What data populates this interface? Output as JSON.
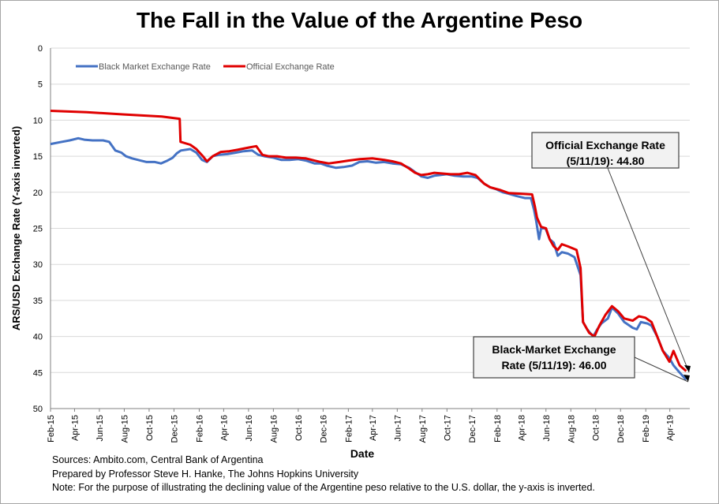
{
  "chart_data": {
    "type": "line",
    "title": "The Fall in the Value of the Argentine Peso",
    "xlabel": "Date",
    "ylabel": "ARS/USD Exchange Rate (Y-axis inverted)",
    "ylim": [
      0,
      50
    ],
    "y_inverted": true,
    "y_ticks": [
      "0",
      "5",
      "10",
      "15",
      "20",
      "25",
      "30",
      "35",
      "40",
      "45",
      "50"
    ],
    "x_ticks": [
      "Feb-15",
      "Apr-15",
      "Jun-15",
      "Aug-15",
      "Oct-15",
      "Dec-15",
      "Feb-16",
      "Apr-16",
      "Jun-16",
      "Aug-16",
      "Oct-16",
      "Dec-16",
      "Feb-17",
      "Apr-17",
      "Jun-17",
      "Aug-17",
      "Oct-17",
      "Dec-17",
      "Feb-18",
      "Apr-18",
      "Jun-18",
      "Aug-18",
      "Oct-18",
      "Dec-18",
      "Feb-19",
      "Apr-19"
    ],
    "grid": true,
    "legend_position": "top-left",
    "series": [
      {
        "name": "Black Market Exchange Rate",
        "color": "#4472c4",
        "points": [
          [
            "2015-02-01",
            13.3
          ],
          [
            "2015-03-01",
            13.0
          ],
          [
            "2015-03-20",
            12.8
          ],
          [
            "2015-04-10",
            12.5
          ],
          [
            "2015-04-25",
            12.7
          ],
          [
            "2015-05-15",
            12.8
          ],
          [
            "2015-06-10",
            12.8
          ],
          [
            "2015-06-25",
            13.0
          ],
          [
            "2015-07-10",
            14.2
          ],
          [
            "2015-07-25",
            14.5
          ],
          [
            "2015-08-05",
            15.0
          ],
          [
            "2015-08-20",
            15.3
          ],
          [
            "2015-09-10",
            15.6
          ],
          [
            "2015-09-25",
            15.8
          ],
          [
            "2015-10-15",
            15.8
          ],
          [
            "2015-10-30",
            16.0
          ],
          [
            "2015-11-15",
            15.6
          ],
          [
            "2015-11-28",
            15.2
          ],
          [
            "2015-12-08",
            14.6
          ],
          [
            "2015-12-18",
            14.2
          ],
          [
            "2016-01-10",
            14.0
          ],
          [
            "2016-01-25",
            14.5
          ],
          [
            "2016-02-08",
            15.5
          ],
          [
            "2016-02-20",
            15.8
          ],
          [
            "2016-03-05",
            15.0
          ],
          [
            "2016-03-20",
            14.8
          ],
          [
            "2016-04-10",
            14.7
          ],
          [
            "2016-05-01",
            14.5
          ],
          [
            "2016-05-20",
            14.3
          ],
          [
            "2016-06-10",
            14.2
          ],
          [
            "2016-06-25",
            14.8
          ],
          [
            "2016-07-10",
            15.0
          ],
          [
            "2016-08-01",
            15.2
          ],
          [
            "2016-08-20",
            15.5
          ],
          [
            "2016-09-10",
            15.5
          ],
          [
            "2016-10-01",
            15.4
          ],
          [
            "2016-10-20",
            15.6
          ],
          [
            "2016-11-10",
            16.0
          ],
          [
            "2016-11-25",
            16.0
          ],
          [
            "2016-12-10",
            16.3
          ],
          [
            "2017-01-01",
            16.6
          ],
          [
            "2017-01-20",
            16.5
          ],
          [
            "2017-02-10",
            16.3
          ],
          [
            "2017-02-28",
            15.8
          ],
          [
            "2017-03-20",
            15.7
          ],
          [
            "2017-04-10",
            15.9
          ],
          [
            "2017-04-30",
            15.8
          ],
          [
            "2017-05-20",
            16.0
          ],
          [
            "2017-06-10",
            16.1
          ],
          [
            "2017-06-30",
            16.6
          ],
          [
            "2017-07-15",
            17.2
          ],
          [
            "2017-07-30",
            17.8
          ],
          [
            "2017-08-15",
            18.0
          ],
          [
            "2017-08-31",
            17.7
          ],
          [
            "2017-09-15",
            17.6
          ],
          [
            "2017-09-30",
            17.5
          ],
          [
            "2017-10-20",
            17.7
          ],
          [
            "2017-11-10",
            17.8
          ],
          [
            "2017-11-30",
            17.8
          ],
          [
            "2017-12-15",
            18.0
          ],
          [
            "2017-12-31",
            18.8
          ],
          [
            "2018-01-15",
            19.3
          ],
          [
            "2018-01-31",
            19.6
          ],
          [
            "2018-02-15",
            20.0
          ],
          [
            "2018-03-01",
            20.2
          ],
          [
            "2018-03-20",
            20.5
          ],
          [
            "2018-04-10",
            20.8
          ],
          [
            "2018-04-25",
            20.8
          ],
          [
            "2018-05-03",
            22.5
          ],
          [
            "2018-05-08",
            24.0
          ],
          [
            "2018-05-15",
            26.5
          ],
          [
            "2018-05-20",
            25.0
          ],
          [
            "2018-05-31",
            25.0
          ],
          [
            "2018-06-10",
            26.5
          ],
          [
            "2018-06-20",
            27.0
          ],
          [
            "2018-06-30",
            28.8
          ],
          [
            "2018-07-10",
            28.3
          ],
          [
            "2018-07-25",
            28.5
          ],
          [
            "2018-08-10",
            29.0
          ],
          [
            "2018-08-25",
            31.5
          ],
          [
            "2018-08-31",
            38.0
          ],
          [
            "2018-09-10",
            39.0
          ],
          [
            "2018-09-25",
            40.0
          ],
          [
            "2018-10-05",
            39.0
          ],
          [
            "2018-10-15",
            38.2
          ],
          [
            "2018-10-31",
            37.5
          ],
          [
            "2018-11-10",
            36.0
          ],
          [
            "2018-11-25",
            36.8
          ],
          [
            "2018-12-10",
            38.0
          ],
          [
            "2018-12-31",
            38.8
          ],
          [
            "2019-01-10",
            39.0
          ],
          [
            "2019-01-20",
            38.0
          ],
          [
            "2019-02-05",
            38.2
          ],
          [
            "2019-02-15",
            38.5
          ],
          [
            "2019-03-01",
            40.0
          ],
          [
            "2019-03-15",
            42.0
          ],
          [
            "2019-03-31",
            43.0
          ],
          [
            "2019-04-10",
            44.0
          ],
          [
            "2019-04-25",
            45.0
          ],
          [
            "2019-05-11",
            46.0
          ]
        ]
      },
      {
        "name": "Official Exchange Rate",
        "color": "#e00000",
        "points": [
          [
            "2015-02-01",
            8.7
          ],
          [
            "2015-05-01",
            8.9
          ],
          [
            "2015-08-01",
            9.2
          ],
          [
            "2015-11-01",
            9.5
          ],
          [
            "2015-12-15",
            9.8
          ],
          [
            "2015-12-17",
            13.0
          ],
          [
            "2016-01-10",
            13.4
          ],
          [
            "2016-01-25",
            14.0
          ],
          [
            "2016-02-10",
            15.0
          ],
          [
            "2016-02-20",
            15.7
          ],
          [
            "2016-03-05",
            15.0
          ],
          [
            "2016-03-25",
            14.4
          ],
          [
            "2016-04-15",
            14.3
          ],
          [
            "2016-05-05",
            14.1
          ],
          [
            "2016-06-01",
            13.8
          ],
          [
            "2016-06-20",
            13.6
          ],
          [
            "2016-07-05",
            14.8
          ],
          [
            "2016-07-20",
            15.0
          ],
          [
            "2016-08-10",
            15.0
          ],
          [
            "2016-09-01",
            15.2
          ],
          [
            "2016-09-25",
            15.2
          ],
          [
            "2016-10-20",
            15.3
          ],
          [
            "2016-11-10",
            15.6
          ],
          [
            "2016-11-25",
            15.8
          ],
          [
            "2016-12-15",
            16.0
          ],
          [
            "2017-01-10",
            15.8
          ],
          [
            "2017-02-01",
            15.6
          ],
          [
            "2017-03-01",
            15.4
          ],
          [
            "2017-04-01",
            15.3
          ],
          [
            "2017-04-30",
            15.5
          ],
          [
            "2017-05-20",
            15.7
          ],
          [
            "2017-06-10",
            16.0
          ],
          [
            "2017-06-30",
            16.7
          ],
          [
            "2017-07-15",
            17.3
          ],
          [
            "2017-07-30",
            17.6
          ],
          [
            "2017-08-15",
            17.5
          ],
          [
            "2017-08-31",
            17.3
          ],
          [
            "2017-09-20",
            17.4
          ],
          [
            "2017-10-10",
            17.5
          ],
          [
            "2017-10-31",
            17.5
          ],
          [
            "2017-11-20",
            17.3
          ],
          [
            "2017-12-10",
            17.6
          ],
          [
            "2017-12-31",
            18.8
          ],
          [
            "2018-01-15",
            19.3
          ],
          [
            "2018-02-10",
            19.7
          ],
          [
            "2018-03-01",
            20.1
          ],
          [
            "2018-03-31",
            20.2
          ],
          [
            "2018-04-28",
            20.3
          ],
          [
            "2018-05-05",
            22.0
          ],
          [
            "2018-05-10",
            23.5
          ],
          [
            "2018-05-20",
            24.8
          ],
          [
            "2018-06-01",
            25.0
          ],
          [
            "2018-06-10",
            26.5
          ],
          [
            "2018-06-20",
            27.5
          ],
          [
            "2018-06-30",
            28.0
          ],
          [
            "2018-07-10",
            27.2
          ],
          [
            "2018-07-25",
            27.5
          ],
          [
            "2018-08-15",
            28.0
          ],
          [
            "2018-08-25",
            30.5
          ],
          [
            "2018-08-31",
            38.0
          ],
          [
            "2018-09-15",
            39.5
          ],
          [
            "2018-09-28",
            40.0
          ],
          [
            "2018-10-10",
            38.5
          ],
          [
            "2018-10-25",
            37.0
          ],
          [
            "2018-11-10",
            35.8
          ],
          [
            "2018-11-25",
            36.5
          ],
          [
            "2018-12-10",
            37.5
          ],
          [
            "2018-12-31",
            37.8
          ],
          [
            "2019-01-15",
            37.2
          ],
          [
            "2019-01-31",
            37.4
          ],
          [
            "2019-02-15",
            38.0
          ],
          [
            "2019-03-01",
            40.0
          ],
          [
            "2019-03-15",
            42.0
          ],
          [
            "2019-03-31",
            43.5
          ],
          [
            "2019-04-10",
            42.0
          ],
          [
            "2019-04-25",
            44.0
          ],
          [
            "2019-05-11",
            44.8
          ]
        ]
      }
    ],
    "annotations": [
      {
        "lines": [
          "Official Exchange Rate",
          "(5/11/19): 44.80"
        ]
      },
      {
        "lines": [
          "Black-Market Exchange",
          "Rate (5/11/19): 46.00"
        ]
      }
    ]
  },
  "footer": {
    "sources": "Sources: Ambito.com, Central Bank of Argentina",
    "prepared": "Prepared by Professor Steve H. Hanke, The Johns Hopkins University",
    "note": "Note: For the purpose of illustrating the declining value of the Argentine peso relative to the U.S. dollar, the y-axis is inverted."
  }
}
